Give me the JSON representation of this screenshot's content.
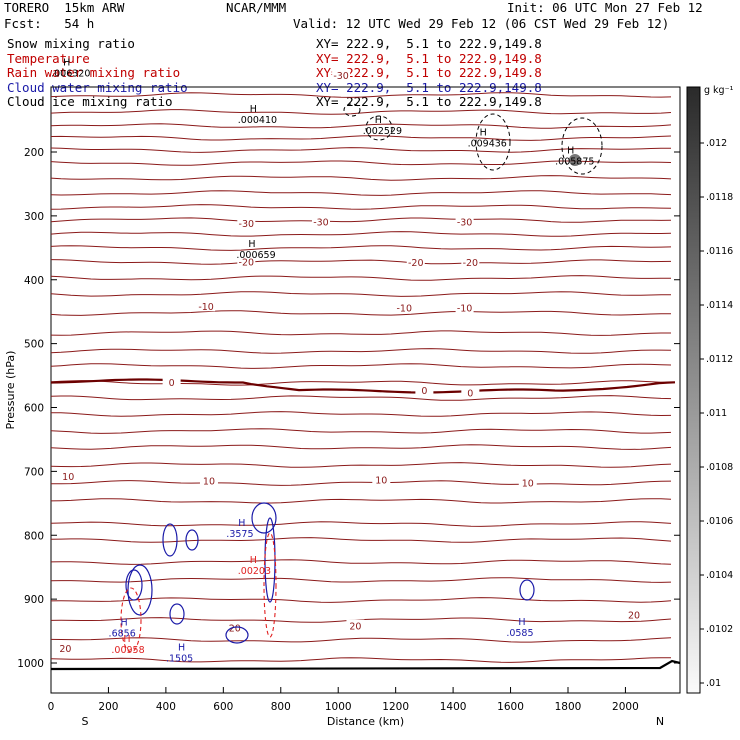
{
  "header": {
    "model": "TORERO  15km ARW",
    "org": "NCAR/MMM",
    "init": "Init: 06 UTC Mon 27 Feb 12",
    "fcst": "Fcst:   54 h",
    "valid": "Valid: 12 UTC Wed 29 Feb 12 (06 CST Wed 29 Feb 12)"
  },
  "fields": [
    {
      "name": "Snow mixing ratio",
      "xy": "XY= 222.9,  5.1 to 222.9,149.8",
      "color": "#000000"
    },
    {
      "name": "Temperature",
      "xy": "XY= 222.9,  5.1 to 222.9,149.8",
      "color": "#c00000"
    },
    {
      "name": "Rain water mixing ratio",
      "xy": "XY= 222.9,  5.1 to 222.9,149.8",
      "color": "#c00000"
    },
    {
      "name": "Cloud water mixing ratio",
      "xy": "XY= 222.9,  5.1 to 222.9,149.8",
      "color": "#1a1aa8"
    },
    {
      "name": "Cloud ice mixing ratio",
      "xy": "XY= 222.9,  5.1 to 222.9,149.8",
      "color": "#000000"
    }
  ],
  "colors": {
    "temperature": "#8b1a1a",
    "rain": "#e02020",
    "cloud_water": "#1a1aa8",
    "black": "#000000"
  },
  "chart_data": {
    "type": "cross-section",
    "xlabel": "Distance (km)",
    "ylabel": "Pressure (hPa)",
    "x_range": [
      0,
      2190
    ],
    "y_range": [
      1050,
      100
    ],
    "x_ticks": [
      0,
      200,
      400,
      600,
      800,
      1000,
      1200,
      1400,
      1600,
      1800,
      2000
    ],
    "y_ticks": [
      200,
      300,
      400,
      500,
      600,
      700,
      800,
      900,
      1000
    ],
    "endpoints": {
      "left": "S",
      "right": "N"
    },
    "colorbar": {
      "unit": "g kg⁻¹",
      "ticks": [
        "0.012",
        ".012",
        ".0118",
        ".0116",
        ".0114",
        ".0112",
        ".011",
        ".0108",
        ".0106",
        ".0104",
        ".0102",
        ".01"
      ]
    },
    "temperature_labels": [
      {
        "text": "-30",
        "x": 1010,
        "p": 81
      },
      {
        "text": "-30",
        "x": 680,
        "p": 313
      },
      {
        "text": "-30",
        "x": 940,
        "p": 310
      },
      {
        "text": "-30",
        "x": 1440,
        "p": 310
      },
      {
        "text": "-20",
        "x": 680,
        "p": 373
      },
      {
        "text": "-20",
        "x": 1270,
        "p": 374
      },
      {
        "text": "-20",
        "x": 1460,
        "p": 374
      },
      {
        "text": "-10",
        "x": 540,
        "p": 443
      },
      {
        "text": "-10",
        "x": 1230,
        "p": 445
      },
      {
        "text": "-10",
        "x": 1440,
        "p": 445
      },
      {
        "text": "0",
        "x": 420,
        "p": 562
      },
      {
        "text": "0",
        "x": 1300,
        "p": 574
      },
      {
        "text": "0",
        "x": 1460,
        "p": 578
      },
      {
        "text": "10",
        "x": 60,
        "p": 709
      },
      {
        "text": "10",
        "x": 550,
        "p": 716
      },
      {
        "text": "10",
        "x": 1150,
        "p": 714
      },
      {
        "text": "10",
        "x": 1660,
        "p": 719
      },
      {
        "text": "20",
        "x": 640,
        "p": 946
      },
      {
        "text": "20",
        "x": 1060,
        "p": 943
      },
      {
        "text": "20",
        "x": 2030,
        "p": 926
      },
      {
        "text": "20",
        "x": 50,
        "p": 978
      }
    ],
    "maxima": [
      {
        "field": "snow",
        "value": ".000410",
        "x": 720,
        "p": 153
      },
      {
        "field": "snow",
        "value": ".002529",
        "x": 1155,
        "p": 170
      },
      {
        "field": "snow",
        "value": ".009436",
        "x": 1520,
        "p": 190
      },
      {
        "field": "snow",
        "value": ".005875",
        "x": 1825,
        "p": 218
      },
      {
        "field": "snow",
        "value": ".006320",
        "x": 70,
        "p": 80
      },
      {
        "field": "snow",
        "value": ".000659",
        "x": 715,
        "p": 364
      },
      {
        "field": "cloud_water",
        "value": ".3575",
        "x": 680,
        "p": 801
      },
      {
        "field": "cloud_water",
        "value": ".6856",
        "x": 270,
        "p": 957
      },
      {
        "field": "cloud_water",
        "value": ".1505",
        "x": 470,
        "p": 996
      },
      {
        "field": "cloud_water",
        "value": ".0585",
        "x": 1655,
        "p": 956
      },
      {
        "field": "rain",
        "value": ".00203",
        "x": 720,
        "p": 859
      },
      {
        "field": "rain",
        "value": ".00958",
        "x": 280,
        "p": 983
      }
    ]
  }
}
